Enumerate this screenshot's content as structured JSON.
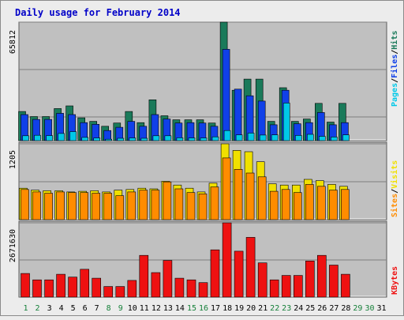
{
  "chart_data": {
    "type": "bar",
    "title": "Daily usage for February 2014",
    "categories": [
      "1",
      "2",
      "3",
      "4",
      "5",
      "6",
      "7",
      "8",
      "9",
      "10",
      "11",
      "12",
      "13",
      "14",
      "15",
      "16",
      "17",
      "18",
      "19",
      "20",
      "21",
      "22",
      "23",
      "24",
      "25",
      "26",
      "27",
      "28",
      "29",
      "30",
      "31"
    ],
    "weekend_days": [
      "1",
      "2",
      "8",
      "9",
      "15",
      "16",
      "22",
      "23",
      "29",
      "30"
    ],
    "panels": [
      {
        "id": "hits",
        "ymax_label": "65812",
        "ymax": 65812,
        "label_parts": [
          {
            "text": "Pages",
            "color": "#00c8e8"
          },
          {
            "text": "/",
            "color": "#000000"
          },
          {
            "text": "Files",
            "color": "#1040e8"
          },
          {
            "text": "/",
            "color": "#000000"
          },
          {
            "text": "Hits",
            "color": "#1a7a5a"
          }
        ],
        "series": [
          {
            "name": "Hits",
            "color": "#1a7a5a",
            "values": [
              16200,
              13400,
              13400,
              17800,
              19300,
              12700,
              10700,
              8000,
              9800,
              16200,
              10000,
              22700,
              13800,
              11600,
              11600,
              11600,
              9800,
              65812,
              28000,
              34200,
              34200,
              10700,
              29400,
              10700,
              12000,
              20700,
              10300,
              20700,
              0,
              0,
              0
            ]
          },
          {
            "name": "Files",
            "color": "#1040e8",
            "values": [
              14500,
              11800,
              11800,
              15200,
              14500,
              10000,
              9100,
              5600,
              7400,
              10700,
              8000,
              14500,
              12000,
              9800,
              10000,
              9800,
              8000,
              50700,
              28600,
              24900,
              22000,
              8800,
              28000,
              9400,
              10000,
              15600,
              8800,
              10000,
              0,
              0,
              0
            ]
          },
          {
            "name": "Pages",
            "color": "#00c8e8",
            "values": [
              2700,
              3000,
              2800,
              4000,
              5000,
              1800,
              1500,
              800,
              1300,
              1500,
              1300,
              2700,
              2700,
              1600,
              1500,
              1500,
              2100,
              5600,
              3200,
              4200,
              3100,
              3200,
              20900,
              2900,
              3500,
              2400,
              2000,
              3200,
              0,
              0,
              0
            ]
          }
        ]
      },
      {
        "id": "sites",
        "ymax_label": "1205",
        "ymax": 1205,
        "label_parts": [
          {
            "text": "Sites",
            "color": "#ff8c00"
          },
          {
            "text": "/",
            "color": "#000000"
          },
          {
            "text": "Visits",
            "color": "#f0e000"
          }
        ],
        "series": [
          {
            "name": "Visits",
            "color": "#f0e000",
            "values": [
              500,
              470,
              460,
              460,
              440,
              450,
              460,
              440,
              470,
              480,
              500,
              490,
              610,
              550,
              500,
              440,
              580,
              1205,
              1100,
              1080,
              920,
              570,
              550,
              550,
              640,
              620,
              560,
              530,
              0,
              0,
              0
            ]
          },
          {
            "name": "Sites",
            "color": "#ff8c00",
            "values": [
              480,
              440,
              420,
              440,
              430,
              430,
              420,
              420,
              380,
              440,
              470,
              470,
              600,
              490,
              430,
              410,
              520,
              980,
              800,
              740,
              680,
              450,
              480,
              430,
              560,
              530,
              470,
              480,
              0,
              0,
              0
            ]
          }
        ]
      },
      {
        "id": "kbytes",
        "ymax_label": "2671630",
        "ymax": 2671630,
        "label_parts": [
          {
            "text": "KBytes",
            "color": "#ee1111"
          }
        ],
        "series": [
          {
            "name": "KBytes",
            "color": "#ee1111",
            "values": [
              850000,
              620000,
              620000,
              820000,
              720000,
              1000000,
              680000,
              380000,
              380000,
              600000,
              1500000,
              880000,
              1320000,
              680000,
              620000,
              520000,
              1700000,
              2671630,
              1650000,
              2150000,
              1230000,
              620000,
              780000,
              780000,
              1300000,
              1500000,
              1150000,
              820000,
              0,
              0,
              0
            ]
          }
        ]
      }
    ],
    "colors": {
      "background": "#ececec",
      "plot": "#c0c0c0",
      "title": "#0000c8",
      "weekday_label": "#000000",
      "weekend_label": "#16803a"
    },
    "grid": true
  }
}
